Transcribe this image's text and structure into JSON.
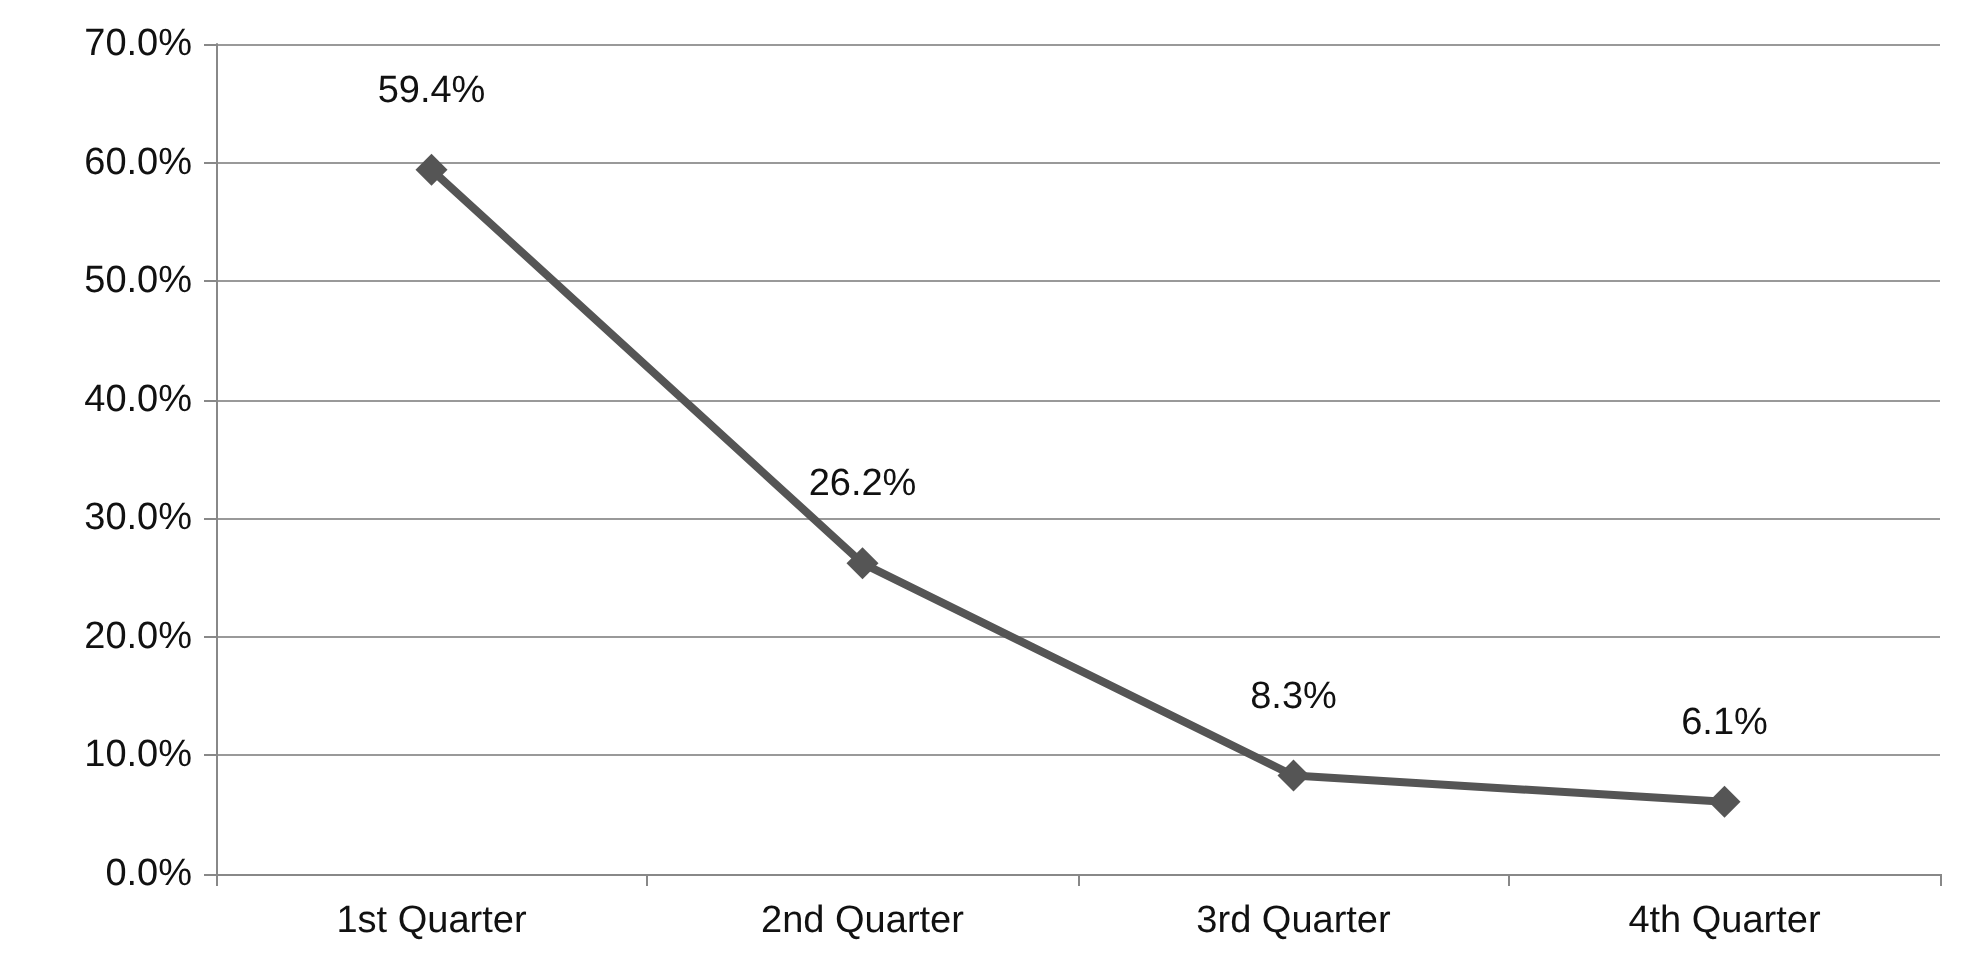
{
  "chart_data": {
    "type": "line",
    "categories": [
      "1st Quarter",
      "2nd Quarter",
      "3rd Quarter",
      "4th Quarter"
    ],
    "values": [
      59.4,
      26.2,
      8.3,
      6.1
    ],
    "value_labels": [
      "59.4%",
      "26.2%",
      "8.3%",
      "6.1%"
    ],
    "color": "#555555",
    "ylim": [
      0,
      70
    ],
    "yticks": [
      {
        "value": 0,
        "label": "0.0%"
      },
      {
        "value": 10,
        "label": "10.0%"
      },
      {
        "value": 20,
        "label": "20.0%"
      },
      {
        "value": 30,
        "label": "30.0%"
      },
      {
        "value": 40,
        "label": "40.0%"
      },
      {
        "value": 50,
        "label": "50.0%"
      },
      {
        "value": 60,
        "label": "60.0%"
      },
      {
        "value": 70,
        "label": "70.0%"
      }
    ],
    "grid": "y",
    "marker": "diamond"
  }
}
